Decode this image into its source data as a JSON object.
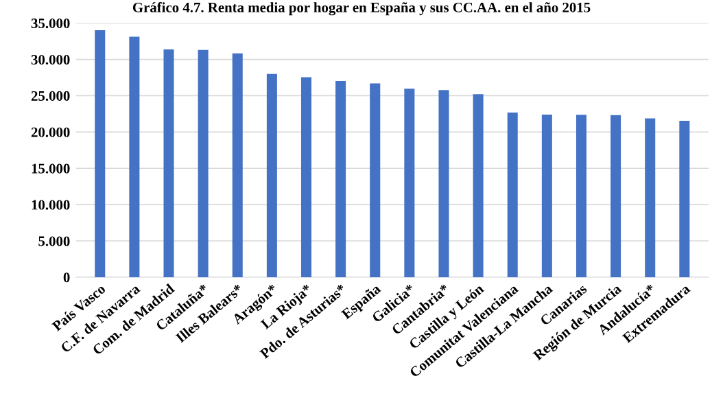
{
  "chart_data": {
    "type": "bar",
    "title": "Gráfico 4.7. Renta media por hogar en España y sus CC.AA. en el año 2015",
    "categories": [
      "País Vasco",
      "C.F. de Navarra",
      "Com. de Madrid",
      "Cataluña*",
      "Illes Balears*",
      "Aragón*",
      "La Rioja*",
      "Pdo. de Asturias*",
      "España",
      "Galicia*",
      "Cantabria*",
      "Castilla y León",
      "Comunitat Valenciana",
      "Castilla-La Mancha",
      "Canarias",
      "Región de Murcia",
      "Andalucía*",
      "Extremadura"
    ],
    "values": [
      34030,
      33130,
      31370,
      31300,
      30830,
      27990,
      27550,
      27020,
      26700,
      25960,
      25770,
      25200,
      22670,
      22400,
      22370,
      22330,
      21870,
      21550
    ],
    "color": "#4472c4",
    "ylim": [
      0,
      35000
    ],
    "yticks": [
      {
        "value": 0,
        "label": "0"
      },
      {
        "value": 5000,
        "label": "5.000"
      },
      {
        "value": 10000,
        "label": "10.000"
      },
      {
        "value": 15000,
        "label": "15.000"
      },
      {
        "value": 20000,
        "label": "20.000"
      },
      {
        "value": 25000,
        "label": "25.000"
      },
      {
        "value": 30000,
        "label": "30.000"
      },
      {
        "value": 35000,
        "label": "35.000"
      }
    ],
    "grid": "y"
  }
}
